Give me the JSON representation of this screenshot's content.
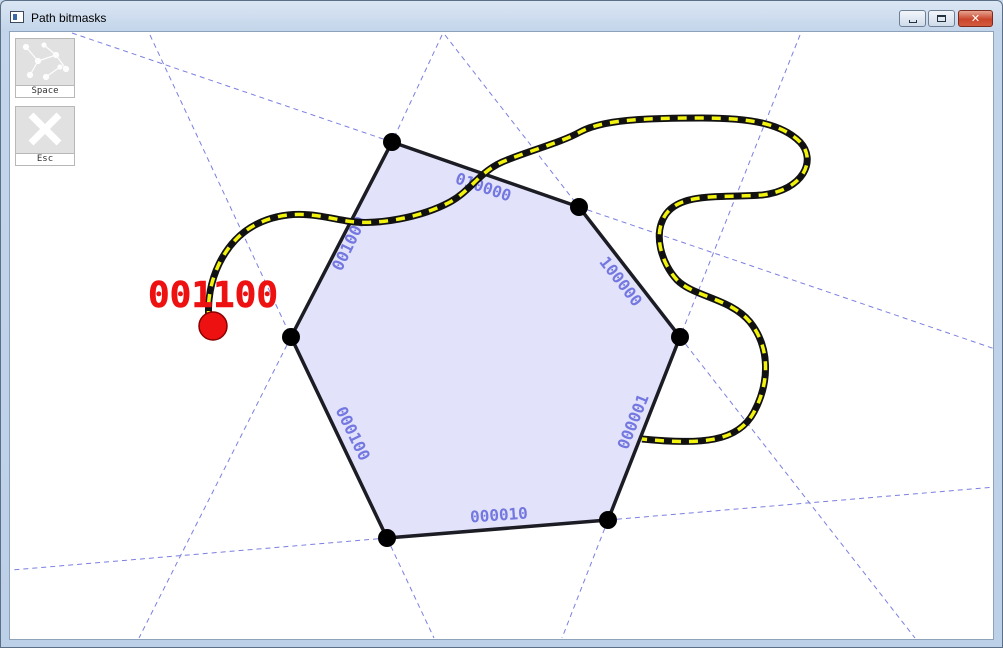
{
  "window": {
    "title": "Path bitmasks",
    "controls": [
      "minimize",
      "maximize",
      "close"
    ],
    "close_glyph": "✕"
  },
  "toolbar": {
    "space_label": "Space",
    "esc_label": "Esc",
    "space_icon": "graph-network-icon",
    "esc_icon": "close-x-icon"
  },
  "canvas": {
    "current_mask": "001100",
    "edge_labels": [
      "010000",
      "100000",
      "000001",
      "000010",
      "000100",
      "001000"
    ],
    "colors": {
      "polygon_fill": "#e2e2fa",
      "polygon_stroke": "#1c1c24",
      "guide_lines": "#7b7fe0",
      "edge_label": "#7377e0",
      "path_dash_a": "#111111",
      "path_dash_b": "#f2f20f",
      "marker": "#ee1111",
      "mask_text": "#ee1111"
    }
  }
}
